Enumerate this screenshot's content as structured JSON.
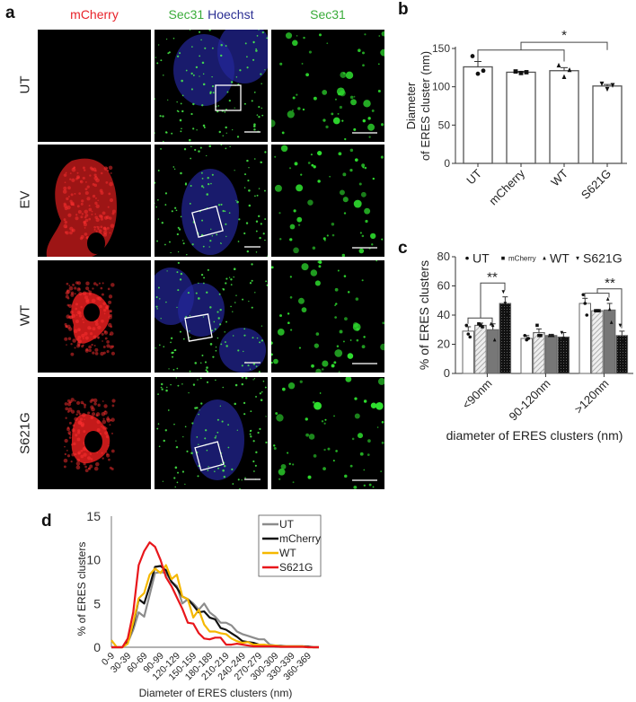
{
  "panel_a": {
    "letter": "a",
    "columns": [
      {
        "label": "mCherry",
        "color": "#e8232a"
      },
      {
        "label_part1": "Sec31",
        "color1": "#3aac3a",
        "label_part2": "Hoechst",
        "color2": "#2b2f93"
      },
      {
        "label": "Sec31",
        "color": "#3aac3a"
      }
    ],
    "rows": [
      "UT",
      "EV",
      "WT",
      "S621G"
    ],
    "image_description": "Confocal microscopy images: mCherry (red), Sec31 (green) with Hoechst nuclei (blue) with white ROI box and scale bar, and zoomed Sec31 puncta (green) with scale bar"
  },
  "chart_data": [
    {
      "panel": "b",
      "type": "bar",
      "title": "",
      "categories": [
        "UT",
        "mCherry",
        "WT",
        "S621G"
      ],
      "values": [
        126,
        119,
        121,
        101
      ],
      "errors": [
        7,
        1,
        4,
        2
      ],
      "points": [
        [
          140,
          117,
          121
        ],
        [
          120,
          118,
          119
        ],
        [
          128,
          113,
          122
        ],
        [
          104,
          97,
          102
        ]
      ],
      "point_markers": [
        "circle",
        "square",
        "triangle-up",
        "triangle-down"
      ],
      "xlabel": "",
      "ylabel": "Diameter\nof ERES cluster (nm)",
      "ylabel_line1": "Diameter",
      "ylabel_line2": "of ERES cluster (nm)",
      "yticks": [
        0,
        50,
        100,
        150
      ],
      "ylim": [
        0,
        150
      ],
      "significance": [
        {
          "groups": [
            "UT",
            "mCherry",
            "WT"
          ],
          "vs": "S621G",
          "label": "*"
        }
      ],
      "bar_fill": "#ffffff",
      "bar_edge": "#555555"
    },
    {
      "panel": "c",
      "type": "bar",
      "title": "",
      "categories": [
        "<90nm",
        "90-120nm",
        ">120nm"
      ],
      "series": [
        {
          "name": "UT",
          "marker": "circle",
          "fill": "#ffffff",
          "values": [
            29,
            24,
            48
          ],
          "errors": [
            3,
            2,
            3.5
          ],
          "points": [
            [
              33,
              27,
              25
            ],
            [
              26,
              23,
              24
            ],
            [
              54,
              48,
              40
            ]
          ]
        },
        {
          "name": "mCherry",
          "marker": "square",
          "fill": "hatch",
          "values": [
            33,
            28,
            43
          ],
          "errors": [
            1.5,
            2.5,
            0.5
          ],
          "points": [
            [
              34,
              33,
              32
            ],
            [
              33,
              26,
              26
            ],
            [
              43,
              43,
              43
            ]
          ]
        },
        {
          "name": "WT",
          "marker": "triangle-up",
          "fill": "#777777",
          "values": [
            30,
            26,
            43.5
          ],
          "errors": [
            4,
            0.8,
            4.5
          ],
          "points": [
            [
              34,
              33,
              23
            ],
            [
              26,
              26,
              26
            ],
            [
              51,
              44,
              35
            ]
          ]
        },
        {
          "name": "S621G",
          "marker": "triangle-down",
          "fill": "dots",
          "values": [
            48,
            25,
            26
          ],
          "errors": [
            4.5,
            3,
            3
          ],
          "points": [
            [
              56,
              48,
              40
            ],
            [
              28,
              24,
              23
            ],
            [
              33,
              24,
              21
            ]
          ]
        }
      ],
      "xlabel": "diameter of ERES clusters (nm)",
      "ylabel": "% of ERES clusters",
      "yticks": [
        0,
        20,
        40,
        60,
        80
      ],
      "ylim": [
        0,
        80
      ],
      "legend_position": "top",
      "significance": [
        {
          "category": "<90nm",
          "groups": [
            "UT",
            "mCherry",
            "WT"
          ],
          "vs": "S621G",
          "label": "**"
        },
        {
          "category": ">120nm",
          "groups": [
            "UT",
            "mCherry",
            "WT"
          ],
          "vs": "S621G",
          "label": "**"
        }
      ]
    },
    {
      "panel": "d",
      "type": "line",
      "title": "",
      "xlabel": "Diameter of ERES clusters (nm)",
      "ylabel": "% of ERES clusters",
      "yticks": [
        0,
        5,
        10,
        15
      ],
      "ylim": [
        0,
        15
      ],
      "x_tick_labels": [
        "0-9",
        "30-39",
        "60-69",
        "90-99",
        "120-129",
        "150-159",
        "180-189",
        "210-219",
        "240-249",
        "270-279",
        "300-309",
        "330-339",
        "360-369"
      ],
      "x": [
        "0-9",
        "10-19",
        "20-29",
        "30-39",
        "40-49",
        "50-59",
        "60-69",
        "70-79",
        "80-89",
        "90-99",
        "100-109",
        "110-119",
        "120-129",
        "130-139",
        "140-149",
        "150-159",
        "160-169",
        "170-179",
        "180-189",
        "190-199",
        "200-209",
        "210-219",
        "220-229",
        "230-239",
        "240-249",
        "250-259",
        "260-269",
        "270-279",
        "280-289",
        "290-299",
        "300-309",
        "310-319",
        "320-329",
        "330-339",
        "340-349",
        "350-359",
        "360-369",
        "370-379",
        "380-389"
      ],
      "legend_position": "upper right",
      "series": [
        {
          "name": "UT",
          "color": "#8c8c8c",
          "values": [
            0,
            0,
            0,
            0.5,
            2,
            4,
            3.5,
            6,
            8.5,
            8.6,
            8.5,
            7.5,
            7,
            5,
            5.5,
            5,
            4.3,
            5,
            4,
            3.5,
            2.8,
            2.8,
            2.5,
            1.8,
            1.5,
            1.3,
            1.1,
            0.9,
            0.9,
            0.3,
            0.2,
            0.2,
            0.1,
            0.1,
            0.1,
            0.1,
            0.1,
            0,
            0
          ]
        },
        {
          "name": "mCherry",
          "color": "#111111",
          "values": [
            0,
            0,
            0,
            0.6,
            2.5,
            5.5,
            5,
            7,
            9.2,
            9.3,
            8.8,
            7.5,
            6.8,
            5.8,
            5.5,
            4.8,
            4,
            4.1,
            3.4,
            3.2,
            2.2,
            2,
            1.6,
            1.2,
            0.7,
            0.6,
            0.5,
            0.3,
            0.2,
            0.2,
            0.1,
            0.1,
            0.1,
            0.1,
            0.1,
            0.1,
            0.05,
            0,
            0
          ]
        },
        {
          "name": "WT",
          "color": "#f5b800",
          "values": [
            0.8,
            0,
            0,
            0.4,
            2.8,
            5.6,
            6.2,
            8.3,
            9,
            8.5,
            9.4,
            7.8,
            8.3,
            5.8,
            5.5,
            3.4,
            4.3,
            2.6,
            1.8,
            1.8,
            1.6,
            1.5,
            1,
            0.7,
            0.5,
            0.6,
            0.3,
            0.3,
            0.3,
            0.2,
            0.2,
            0.1,
            0.1,
            0.1,
            0.1,
            0.1,
            0,
            0,
            0
          ]
        },
        {
          "name": "S621G",
          "color": "#e8161b",
          "values": [
            0,
            0,
            0,
            1,
            4,
            9.4,
            11,
            12,
            11.5,
            10,
            8,
            7,
            5.7,
            4.4,
            2.8,
            2.7,
            1.6,
            1,
            0.9,
            1.1,
            1.1,
            0.3,
            0.3,
            0.4,
            0.3,
            0.2,
            0.1,
            0.1,
            0.1,
            0.1,
            0.1,
            0.05,
            0.05,
            0.05,
            0.05,
            0.05,
            0,
            0,
            0
          ]
        }
      ]
    }
  ]
}
